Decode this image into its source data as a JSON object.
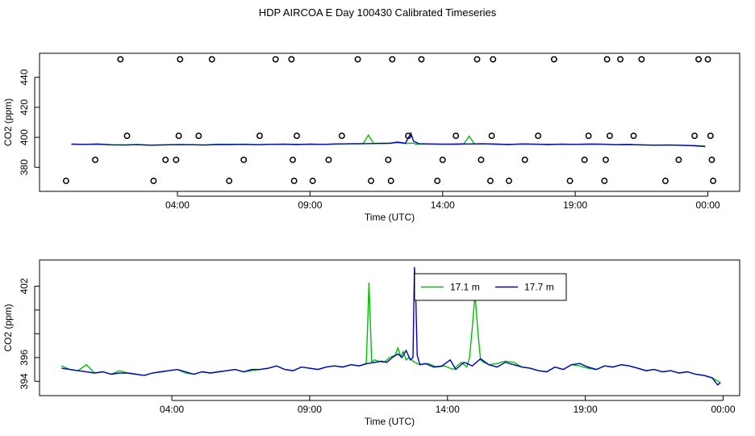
{
  "title": "HDP AIRCOA E  Day 100430  Calibrated Timeseries",
  "chart_data": [
    {
      "type": "line",
      "panel": "top",
      "xlabel": "Time (UTC)",
      "ylabel": "CO2 (ppm)",
      "x_unit": "hours UTC",
      "xlim": [
        -1.2,
        25.2
      ],
      "ylim": [
        364,
        456
      ],
      "x_ticks": [
        4,
        9,
        14,
        19,
        24
      ],
      "x_tick_labels": [
        "04:00",
        "09:00",
        "14:00",
        "19:00",
        "00:00"
      ],
      "y_ticks": [
        380,
        400,
        420,
        440
      ],
      "y_tick_labels": [
        "380",
        "400",
        "420",
        "440"
      ],
      "series": [
        {
          "color": "#00c000",
          "x": [
            0,
            0.5,
            1,
            1.5,
            2,
            2.5,
            3,
            3.5,
            4,
            4.5,
            5,
            5.5,
            6,
            6.5,
            7,
            7.5,
            8,
            8.5,
            9,
            9.5,
            10,
            10.5,
            11,
            11.2,
            11.4,
            11.6,
            12,
            12.3,
            12.6,
            12.9,
            13,
            13.5,
            14,
            14.5,
            14.8,
            15,
            15.2,
            15.5,
            16,
            16.5,
            17,
            17.5,
            18,
            18.5,
            19,
            19.5,
            20,
            20.5,
            21,
            21.5,
            22,
            22.5,
            23,
            23.5,
            23.9
          ],
          "y": [
            395.5,
            395.3,
            395.6,
            395.1,
            394.9,
            395.2,
            394.8,
            395.0,
            395.2,
            395.1,
            394.9,
            395.3,
            395.2,
            395.4,
            395.1,
            395.3,
            395.4,
            395.2,
            395.5,
            395.3,
            395.6,
            395.7,
            395.8,
            401.5,
            395.9,
            396.0,
            396.1,
            396.5,
            395.9,
            396.2,
            395.5,
            395.6,
            395.4,
            395.5,
            395.7,
            400.8,
            395.6,
            395.7,
            395.5,
            395.2,
            395.6,
            395.4,
            395.2,
            395.4,
            395.3,
            395.5,
            395.4,
            395.1,
            395.2,
            395.0,
            394.8,
            394.9,
            394.7,
            394.5,
            394.2
          ]
        },
        {
          "color": "#0000c8",
          "x": [
            0,
            0.5,
            1,
            1.5,
            2,
            2.5,
            3,
            3.5,
            4,
            4.5,
            5,
            5.5,
            6,
            6.5,
            7,
            7.5,
            8,
            8.5,
            9,
            9.5,
            10,
            10.5,
            11,
            11.5,
            12,
            12.3,
            12.6,
            12.8,
            12.9,
            13.1,
            13.5,
            14,
            14.5,
            15,
            15.5,
            16,
            16.5,
            17,
            17.5,
            18,
            18.5,
            19,
            19.5,
            20,
            20.5,
            21,
            21.5,
            22,
            22.5,
            23,
            23.5,
            23.9
          ],
          "y": [
            395.4,
            395.3,
            395.5,
            395.0,
            394.9,
            395.1,
            394.8,
            395.0,
            395.1,
            395.1,
            394.9,
            395.2,
            395.2,
            395.3,
            395.1,
            395.3,
            395.4,
            395.2,
            395.4,
            395.3,
            395.6,
            395.7,
            395.8,
            395.9,
            396.0,
            396.8,
            396.0,
            402.8,
            397.5,
            395.8,
            395.6,
            395.4,
            395.5,
            395.6,
            395.7,
            395.5,
            395.2,
            395.6,
            395.4,
            395.2,
            395.4,
            395.3,
            395.5,
            395.4,
            395.1,
            395.2,
            395.0,
            394.8,
            394.9,
            394.7,
            394.4,
            393.8
          ]
        }
      ],
      "points": {
        "symbol": "open-circle",
        "x": [
          -0.2,
          0.9,
          1.85,
          2.1,
          3.1,
          3.55,
          3.95,
          4.05,
          4.1,
          4.8,
          5.3,
          5.95,
          6.5,
          7.1,
          7.7,
          8.3,
          8.35,
          8.4,
          8.5,
          9.1,
          9.7,
          10.2,
          10.8,
          11.3,
          11.95,
          12.05,
          12.1,
          12.7,
          13.2,
          13.8,
          14.0,
          14.5,
          15.3,
          15.45,
          15.8,
          15.85,
          15.9,
          16.5,
          17.1,
          17.6,
          18.2,
          18.8,
          19.35,
          19.5,
          20.1,
          20.15,
          20.2,
          20.3,
          20.7,
          21.2,
          21.5,
          22.4,
          22.9,
          23.5,
          23.65,
          24.0,
          24.1,
          24.15,
          24.2
        ],
        "y": [
          371,
          385,
          452,
          401,
          371,
          385,
          385,
          401,
          452,
          401,
          452,
          371,
          385,
          401,
          452,
          452,
          385,
          371,
          401,
          371,
          385,
          401,
          452,
          371,
          385,
          371,
          452,
          401,
          452,
          371,
          385,
          401,
          452,
          385,
          371,
          401,
          452,
          371,
          385,
          401,
          452,
          371,
          385,
          401,
          371,
          385,
          452,
          401,
          452,
          401,
          452,
          371,
          385,
          401,
          452,
          452,
          401,
          385,
          371
        ]
      }
    },
    {
      "type": "line",
      "panel": "bottom",
      "xlabel": "Time (UTC)",
      "ylabel": "CO2 (ppm)",
      "x_unit": "hours UTC",
      "xlim": [
        -0.8,
        24.6
      ],
      "ylim": [
        392.8,
        404.2
      ],
      "x_ticks": [
        4,
        9,
        14,
        19,
        24
      ],
      "x_tick_labels": [
        "04:00",
        "09:00",
        "14:00",
        "19:00",
        "00:00"
      ],
      "y_ticks": [
        394,
        396,
        398,
        400,
        402
      ],
      "y_tick_labels": [
        "394",
        "396",
        "",
        "",
        "402"
      ],
      "legend": {
        "position": "top-center",
        "entries": [
          "17.1 m",
          "17.7 m"
        ]
      },
      "series": [
        {
          "name": "17.1 m",
          "color": "#00c000",
          "x": [
            0,
            0.3,
            0.6,
            0.9,
            1.2,
            1.5,
            1.8,
            2.1,
            2.4,
            2.7,
            3.0,
            3.3,
            3.6,
            3.9,
            4.2,
            4.5,
            4.8,
            5.1,
            5.4,
            5.7,
            6.0,
            6.3,
            6.6,
            6.9,
            7.2,
            7.5,
            7.8,
            8.1,
            8.4,
            8.7,
            9.0,
            9.3,
            9.6,
            9.9,
            10.2,
            10.5,
            10.8,
            11.05,
            11.1,
            11.15,
            11.2,
            11.25,
            11.35,
            11.5,
            11.7,
            11.9,
            12.1,
            12.2,
            12.3,
            12.4,
            12.5,
            12.6,
            12.8,
            13.0,
            13.3,
            13.6,
            13.9,
            14.2,
            14.5,
            14.7,
            14.8,
            14.9,
            15.0,
            15.1,
            15.2,
            15.3,
            15.5,
            15.8,
            16.1,
            16.4,
            16.7,
            17.0,
            17.3,
            17.6,
            17.9,
            18.2,
            18.5,
            18.8,
            19.1,
            19.4,
            19.7,
            20.0,
            20.3,
            20.6,
            20.9,
            21.2,
            21.5,
            21.8,
            22.1,
            22.4,
            22.7,
            23.0,
            23.3,
            23.6,
            23.9
          ],
          "y": [
            395.3,
            395.0,
            394.9,
            395.4,
            394.7,
            394.8,
            394.6,
            394.9,
            394.7,
            394.6,
            394.5,
            394.7,
            394.8,
            394.9,
            395.0,
            394.7,
            394.6,
            394.8,
            394.7,
            394.8,
            394.9,
            395.0,
            394.8,
            394.9,
            395.0,
            395.1,
            395.3,
            395.0,
            394.9,
            395.2,
            395.1,
            395.0,
            395.2,
            395.3,
            395.2,
            395.4,
            395.3,
            395.5,
            398.5,
            402.3,
            399.0,
            395.6,
            395.8,
            395.7,
            395.6,
            396.0,
            396.2,
            396.8,
            396.1,
            396.5,
            395.8,
            396.0,
            395.6,
            395.4,
            395.5,
            395.2,
            395.3,
            395.0,
            395.6,
            395.2,
            396.0,
            398.5,
            401.3,
            398.2,
            395.8,
            395.6,
            395.4,
            395.5,
            395.7,
            395.6,
            395.2,
            395.1,
            394.9,
            394.8,
            395.2,
            395.0,
            395.4,
            395.3,
            395.1,
            395.0,
            395.3,
            395.2,
            395.4,
            395.3,
            395.1,
            394.9,
            395.0,
            394.8,
            394.9,
            394.7,
            394.8,
            394.6,
            394.5,
            394.3,
            393.9
          ]
        },
        {
          "name": "17.7 m",
          "color": "#0000c8",
          "x": [
            0,
            0.3,
            0.6,
            0.9,
            1.2,
            1.5,
            1.8,
            2.1,
            2.4,
            2.7,
            3.0,
            3.3,
            3.6,
            3.9,
            4.2,
            4.5,
            4.8,
            5.1,
            5.4,
            5.7,
            6.0,
            6.3,
            6.6,
            6.9,
            7.2,
            7.5,
            7.8,
            8.1,
            8.4,
            8.7,
            9.0,
            9.3,
            9.6,
            9.9,
            10.2,
            10.5,
            10.8,
            11.1,
            11.4,
            11.6,
            11.8,
            12.0,
            12.2,
            12.35,
            12.5,
            12.65,
            12.75,
            12.8,
            12.85,
            12.9,
            13.0,
            13.2,
            13.5,
            13.8,
            14.1,
            14.3,
            14.6,
            14.9,
            15.2,
            15.5,
            15.8,
            16.1,
            16.4,
            16.7,
            17.0,
            17.3,
            17.6,
            17.9,
            18.2,
            18.5,
            18.8,
            19.1,
            19.4,
            19.7,
            20.0,
            20.3,
            20.6,
            20.9,
            21.2,
            21.5,
            21.8,
            22.1,
            22.4,
            22.7,
            23.0,
            23.3,
            23.6,
            23.8,
            23.9
          ],
          "y": [
            395.1,
            395.0,
            394.9,
            394.8,
            394.7,
            394.8,
            394.6,
            394.7,
            394.7,
            394.6,
            394.5,
            394.7,
            394.8,
            394.9,
            395.0,
            394.8,
            394.6,
            394.8,
            394.7,
            394.8,
            394.9,
            395.0,
            394.8,
            395.0,
            395.0,
            395.1,
            395.3,
            395.0,
            394.9,
            395.2,
            395.1,
            395.0,
            395.2,
            395.3,
            395.2,
            395.4,
            395.3,
            395.5,
            395.6,
            395.7,
            395.6,
            396.0,
            396.3,
            396.0,
            396.6,
            395.8,
            396.0,
            403.6,
            401.0,
            396.2,
            395.4,
            395.5,
            395.2,
            395.3,
            395.8,
            395.0,
            395.6,
            395.3,
            395.9,
            395.4,
            395.2,
            395.6,
            395.4,
            395.2,
            395.1,
            394.9,
            394.8,
            395.2,
            395.0,
            395.4,
            395.5,
            395.2,
            395.0,
            395.3,
            395.2,
            395.4,
            395.3,
            395.1,
            394.9,
            395.0,
            394.8,
            394.9,
            394.7,
            394.8,
            394.6,
            394.5,
            394.3,
            393.7,
            393.9
          ]
        }
      ]
    }
  ]
}
